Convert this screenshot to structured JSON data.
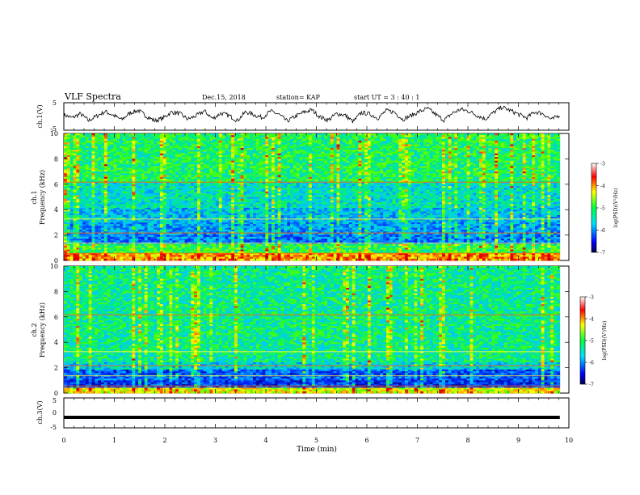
{
  "header": {
    "title": "VLF Spectra",
    "date": "Dec.15, 2018",
    "station": "station= KAP",
    "start_ut": "start  UT  =   3  : 40 : 1"
  },
  "chart_data": [
    {
      "type": "line",
      "ylabel": "ch.1(V)",
      "xlim": [
        0,
        10
      ],
      "ylim": [
        -5,
        5
      ],
      "y_ticks": [
        "5",
        "-5"
      ],
      "x_end": 9.82,
      "series_samples": [
        0.6,
        -0.5,
        1.0,
        -1.5,
        0.2,
        1.8,
        0.4,
        -1.2,
        1.3,
        2.2,
        0.1,
        -1.6,
        -0.6,
        1.6,
        1.1,
        -1.0,
        0.2,
        2.0,
        -0.8,
        1.2,
        0.3,
        -1.5,
        1.7,
        0.6,
        -0.4,
        1.9,
        0.8,
        -1.7,
        0.0,
        1.5,
        2.4,
        -0.2,
        -1.3,
        1.0,
        0.5,
        -1.9,
        1.4,
        0.9,
        -0.6,
        2.1,
        1.6,
        -1.1,
        0.3,
        1.8,
        2.9,
        0.7,
        -1.4,
        1.2,
        2.6,
        1.9,
        0.4,
        -0.9,
        1.5,
        3.4,
        2.2,
        0.8,
        -0.5,
        1.7,
        1.0,
        -1.2,
        0.6
      ]
    },
    {
      "type": "heatmap",
      "ylabel_top": "ch.1",
      "ylabel": "Frequency  (kHz)",
      "xlim": [
        0,
        10
      ],
      "ylim": [
        0,
        10
      ],
      "y_ticks": [
        "0",
        "2",
        "4",
        "6",
        "8",
        "10"
      ],
      "x_end": 9.82,
      "colorbar": {
        "min": -7,
        "max": -3,
        "ticks": [
          "-3",
          "-4",
          "-5",
          "-6",
          "-7"
        ],
        "label": "log(PSD)(V²/Hz)"
      }
    },
    {
      "type": "heatmap",
      "ylabel_top": "ch.2",
      "ylabel": "Frequency  (kHz)",
      "xlim": [
        0,
        10
      ],
      "ylim": [
        0,
        10
      ],
      "y_ticks": [
        "0",
        "2",
        "4",
        "6",
        "8",
        "10"
      ],
      "x_end": 9.82,
      "colorbar": {
        "min": -7,
        "max": -3,
        "ticks": [
          "-3",
          "-4",
          "-5",
          "-6",
          "-7"
        ],
        "label": "log(PSD)(V²/Hz)"
      }
    },
    {
      "type": "line",
      "ylabel": "ch.3(V)",
      "xlim": [
        0,
        10
      ],
      "ylim": [
        -5,
        5
      ],
      "y_ticks": [
        "5",
        "0",
        "-5"
      ],
      "constant_value": -1.5,
      "x_end": 9.82
    }
  ],
  "xaxis": {
    "label": "Time  (min)",
    "ticks": [
      "0",
      "1",
      "2",
      "3",
      "4",
      "5",
      "6",
      "7",
      "8",
      "9",
      "10"
    ]
  }
}
